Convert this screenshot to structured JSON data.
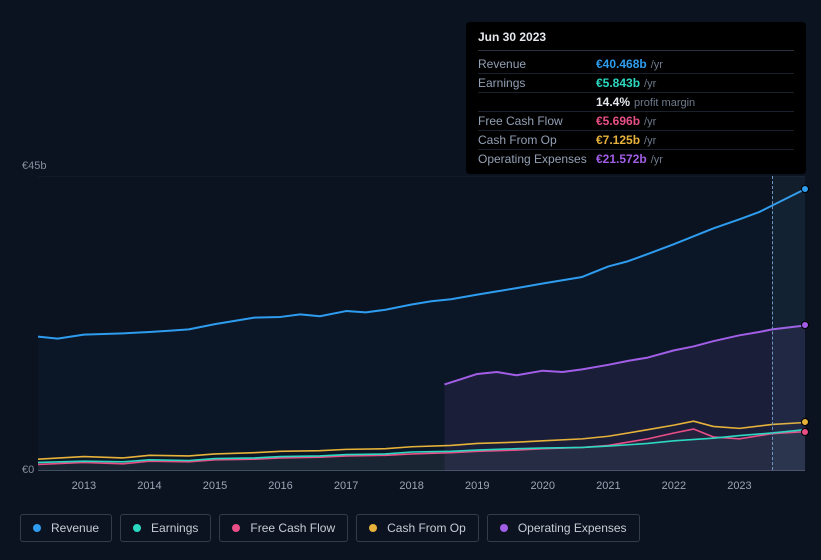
{
  "tooltip": {
    "date": "Jun 30 2023",
    "rows": [
      {
        "label": "Revenue",
        "value": "€40.468b",
        "unit": "/yr",
        "color": "#2e9cef"
      },
      {
        "label": "Earnings",
        "value": "€5.843b",
        "unit": "/yr",
        "color": "#2bd9c1"
      },
      {
        "label": "",
        "value": "14.4%",
        "unit": "profit margin",
        "color": "#e4e7ec",
        "margin": true
      },
      {
        "label": "Free Cash Flow",
        "value": "€5.696b",
        "unit": "/yr",
        "color": "#e94f86"
      },
      {
        "label": "Cash From Op",
        "value": "€7.125b",
        "unit": "/yr",
        "color": "#e6b23a"
      },
      {
        "label": "Operating Expenses",
        "value": "€21.572b",
        "unit": "/yr",
        "color": "#a25ee6"
      }
    ]
  },
  "chart": {
    "type": "line",
    "y_max_label": "€45b",
    "y_zero_label": "€0",
    "y_max": 45,
    "y_min": 0,
    "x_start": 2012.3,
    "x_end": 2024,
    "x_ticks": [
      2013,
      2014,
      2015,
      2016,
      2017,
      2018,
      2019,
      2020,
      2021,
      2022,
      2023
    ],
    "band_start": 2023.5,
    "cursor_x": 2023.5,
    "background": "#0b1320",
    "grid_color": "#1a2230",
    "axis_color": "#3a4556",
    "series": [
      {
        "name": "Revenue",
        "color": "#2e9cef",
        "area_fill": "rgba(46,156,239,0.03)",
        "width": 2,
        "points": [
          [
            2012.3,
            20.5
          ],
          [
            2012.6,
            20.2
          ],
          [
            2013,
            20.8
          ],
          [
            2013.3,
            20.9
          ],
          [
            2013.6,
            21.0
          ],
          [
            2014,
            21.2
          ],
          [
            2014.3,
            21.4
          ],
          [
            2014.6,
            21.6
          ],
          [
            2015,
            22.4
          ],
          [
            2015.3,
            22.9
          ],
          [
            2015.6,
            23.4
          ],
          [
            2016,
            23.5
          ],
          [
            2016.3,
            23.9
          ],
          [
            2016.6,
            23.6
          ],
          [
            2017,
            24.4
          ],
          [
            2017.3,
            24.2
          ],
          [
            2017.6,
            24.6
          ],
          [
            2018,
            25.4
          ],
          [
            2018.3,
            25.9
          ],
          [
            2018.6,
            26.2
          ],
          [
            2019,
            26.9
          ],
          [
            2019.3,
            27.4
          ],
          [
            2019.6,
            27.9
          ],
          [
            2020,
            28.6
          ],
          [
            2020.3,
            29.1
          ],
          [
            2020.6,
            29.6
          ],
          [
            2021,
            31.2
          ],
          [
            2021.3,
            32.0
          ],
          [
            2021.6,
            33.1
          ],
          [
            2022,
            34.6
          ],
          [
            2022.3,
            35.8
          ],
          [
            2022.6,
            37.0
          ],
          [
            2023,
            38.4
          ],
          [
            2023.3,
            39.5
          ],
          [
            2023.5,
            40.5
          ],
          [
            2024,
            43
          ]
        ]
      },
      {
        "name": "Operating Expenses",
        "color": "#a25ee6",
        "area_fill": "rgba(162,94,230,0.10)",
        "width": 2,
        "start_x": 2018.5,
        "points": [
          [
            2018.5,
            13.2
          ],
          [
            2019,
            14.8
          ],
          [
            2019.3,
            15.1
          ],
          [
            2019.6,
            14.6
          ],
          [
            2020,
            15.3
          ],
          [
            2020.3,
            15.1
          ],
          [
            2020.6,
            15.5
          ],
          [
            2021,
            16.2
          ],
          [
            2021.3,
            16.8
          ],
          [
            2021.6,
            17.3
          ],
          [
            2022,
            18.4
          ],
          [
            2022.3,
            19.0
          ],
          [
            2022.6,
            19.8
          ],
          [
            2023,
            20.7
          ],
          [
            2023.3,
            21.2
          ],
          [
            2023.5,
            21.6
          ],
          [
            2024,
            22.2
          ]
        ]
      },
      {
        "name": "Cash From Op",
        "color": "#e6b23a",
        "area_fill": "none",
        "width": 1.6,
        "points": [
          [
            2012.3,
            1.8
          ],
          [
            2013,
            2.2
          ],
          [
            2013.6,
            2.0
          ],
          [
            2014,
            2.4
          ],
          [
            2014.6,
            2.3
          ],
          [
            2015,
            2.6
          ],
          [
            2015.6,
            2.8
          ],
          [
            2016,
            3.0
          ],
          [
            2016.6,
            3.1
          ],
          [
            2017,
            3.3
          ],
          [
            2017.6,
            3.4
          ],
          [
            2018,
            3.7
          ],
          [
            2018.6,
            3.9
          ],
          [
            2019,
            4.2
          ],
          [
            2019.6,
            4.4
          ],
          [
            2020,
            4.6
          ],
          [
            2020.6,
            4.9
          ],
          [
            2021,
            5.3
          ],
          [
            2021.6,
            6.3
          ],
          [
            2022,
            7.0
          ],
          [
            2022.3,
            7.6
          ],
          [
            2022.6,
            6.8
          ],
          [
            2023,
            6.5
          ],
          [
            2023.5,
            7.1
          ],
          [
            2024,
            7.4
          ]
        ]
      },
      {
        "name": "Free Cash Flow",
        "color": "#e94f86",
        "area_fill": "rgba(233,79,134,0.06)",
        "width": 1.6,
        "points": [
          [
            2012.3,
            1.0
          ],
          [
            2013,
            1.3
          ],
          [
            2013.6,
            1.1
          ],
          [
            2014,
            1.5
          ],
          [
            2014.6,
            1.4
          ],
          [
            2015,
            1.7
          ],
          [
            2015.6,
            1.8
          ],
          [
            2016,
            2.0
          ],
          [
            2016.6,
            2.1
          ],
          [
            2017,
            2.3
          ],
          [
            2017.6,
            2.4
          ],
          [
            2018,
            2.6
          ],
          [
            2018.6,
            2.8
          ],
          [
            2019,
            3.0
          ],
          [
            2019.6,
            3.2
          ],
          [
            2020,
            3.4
          ],
          [
            2020.6,
            3.6
          ],
          [
            2021,
            3.9
          ],
          [
            2021.6,
            4.9
          ],
          [
            2022,
            5.8
          ],
          [
            2022.3,
            6.4
          ],
          [
            2022.6,
            5.2
          ],
          [
            2023,
            4.9
          ],
          [
            2023.5,
            5.7
          ],
          [
            2024,
            6.0
          ]
        ]
      },
      {
        "name": "Earnings",
        "color": "#2bd9c1",
        "area_fill": "rgba(43,217,193,0.06)",
        "width": 1.6,
        "points": [
          [
            2012.3,
            1.3
          ],
          [
            2013,
            1.5
          ],
          [
            2013.6,
            1.4
          ],
          [
            2014,
            1.7
          ],
          [
            2014.6,
            1.6
          ],
          [
            2015,
            1.9
          ],
          [
            2015.6,
            2.0
          ],
          [
            2016,
            2.2
          ],
          [
            2016.6,
            2.3
          ],
          [
            2017,
            2.5
          ],
          [
            2017.6,
            2.6
          ],
          [
            2018,
            2.9
          ],
          [
            2018.6,
            3.0
          ],
          [
            2019,
            3.2
          ],
          [
            2019.6,
            3.4
          ],
          [
            2020,
            3.5
          ],
          [
            2020.6,
            3.6
          ],
          [
            2021,
            3.8
          ],
          [
            2021.6,
            4.2
          ],
          [
            2022,
            4.6
          ],
          [
            2022.6,
            5.0
          ],
          [
            2023,
            5.4
          ],
          [
            2023.5,
            5.8
          ],
          [
            2024,
            6.3
          ]
        ]
      }
    ],
    "end_markers": [
      {
        "series": "Revenue",
        "color": "#2e9cef",
        "x": 2024,
        "y": 43
      },
      {
        "series": "Operating Expenses",
        "color": "#a25ee6",
        "x": 2024,
        "y": 22.2
      },
      {
        "series": "Cash From Op",
        "color": "#e6b23a",
        "x": 2024,
        "y": 7.4
      },
      {
        "series": "Free Cash Flow",
        "color": "#e94f86",
        "x": 2024,
        "y": 6.0
      }
    ]
  },
  "legend": [
    {
      "label": "Revenue",
      "color": "#2e9cef"
    },
    {
      "label": "Earnings",
      "color": "#2bd9c1"
    },
    {
      "label": "Free Cash Flow",
      "color": "#e94f86"
    },
    {
      "label": "Cash From Op",
      "color": "#e6b23a"
    },
    {
      "label": "Operating Expenses",
      "color": "#a25ee6"
    }
  ]
}
